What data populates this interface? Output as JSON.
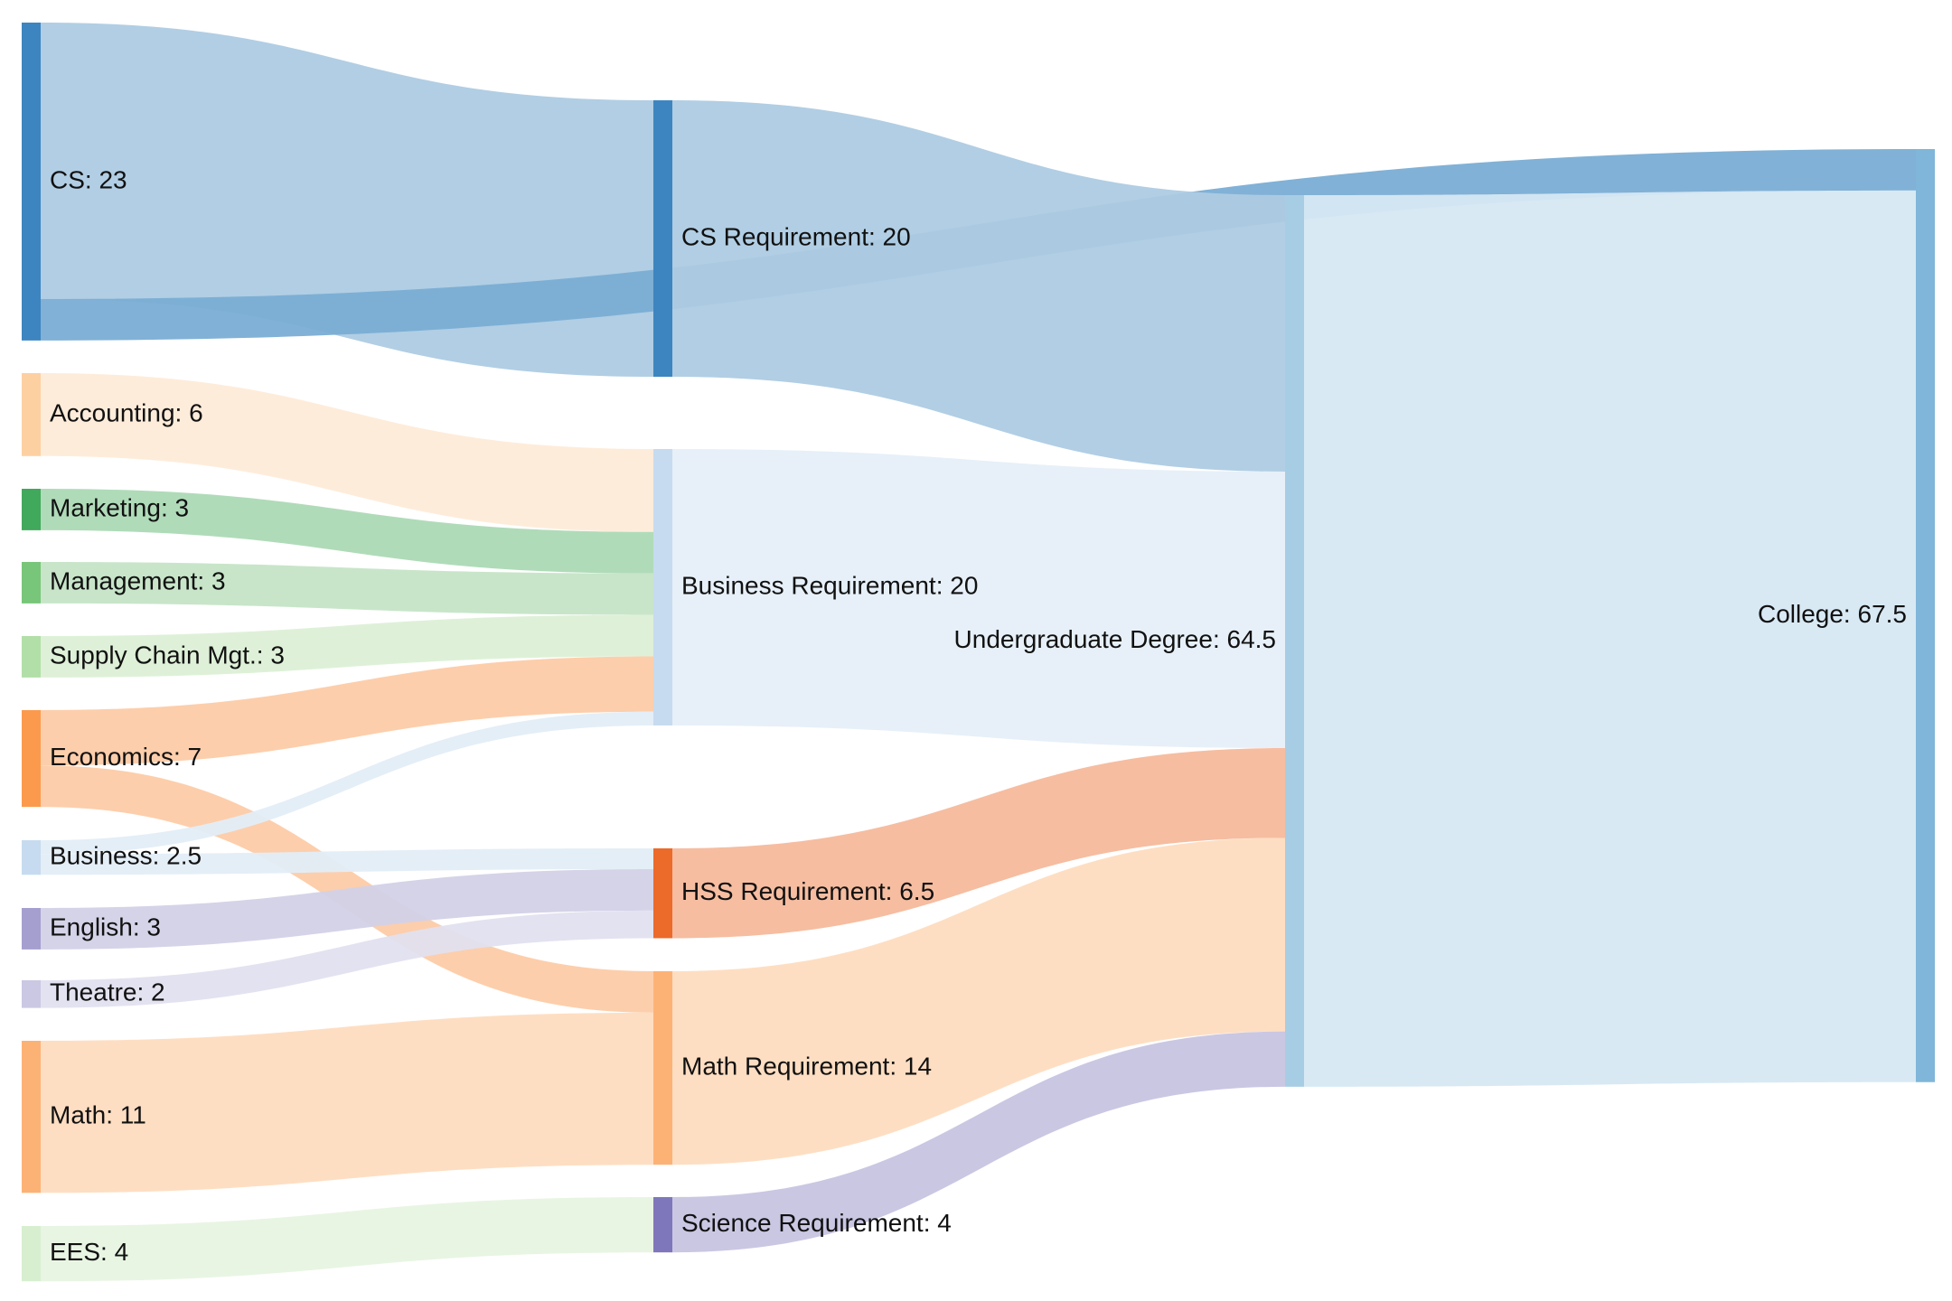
{
  "chart_data": {
    "type": "sankey",
    "title": "",
    "nodes": [
      {
        "id": "cs",
        "name": "CS",
        "label": "CS: 23",
        "value": 23,
        "color": "#3d85c0"
      },
      {
        "id": "accounting",
        "name": "Accounting",
        "label": "Accounting: 6",
        "value": 6,
        "color": "#fdd0a2"
      },
      {
        "id": "marketing",
        "name": "Marketing",
        "label": "Marketing: 3",
        "value": 3,
        "color": "#41a95c"
      },
      {
        "id": "management",
        "name": "Management",
        "label": "Management: 3",
        "value": 3,
        "color": "#78c679"
      },
      {
        "id": "supply_chain",
        "name": "Supply Chain Mgt.",
        "label": "Supply Chain Mgt.: 3",
        "value": 3,
        "color": "#b2dfa8"
      },
      {
        "id": "economics",
        "name": "Economics",
        "label": "Economics: 7",
        "value": 7,
        "color": "#fb9a4d"
      },
      {
        "id": "business",
        "name": "Business",
        "label": "Business: 2.5",
        "value": 2.5,
        "color": "#c6dbef"
      },
      {
        "id": "english",
        "name": "English",
        "label": "English: 3",
        "value": 3,
        "color": "#a59fcf"
      },
      {
        "id": "theatre",
        "name": "Theatre",
        "label": "Theatre: 2",
        "value": 2,
        "color": "#cac8e3"
      },
      {
        "id": "math",
        "name": "Math",
        "label": "Math: 11",
        "value": 11,
        "color": "#fdb275"
      },
      {
        "id": "ees",
        "name": "EES",
        "label": "EES: 4",
        "value": 4,
        "color": "#d7efcf"
      },
      {
        "id": "cs_req",
        "name": "CS Requirement",
        "label": "CS Requirement: 20",
        "value": 20,
        "color": "#3d85c0"
      },
      {
        "id": "business_req",
        "name": "Business Requirement",
        "label": "Business Requirement: 20",
        "value": 20,
        "color": "#c6dbef"
      },
      {
        "id": "hss_req",
        "name": "HSS Requirement",
        "label": "HSS Requirement: 6.5",
        "value": 6.5,
        "color": "#ec6a2a"
      },
      {
        "id": "math_req",
        "name": "Math Requirement",
        "label": "Math Requirement: 14",
        "value": 14,
        "color": "#fdb275"
      },
      {
        "id": "science_req",
        "name": "Science Requirement",
        "label": "Science Requirement: 4",
        "value": 4,
        "color": "#7f77bb"
      },
      {
        "id": "undergrad",
        "name": "Undergraduate Degree",
        "label": "Undergraduate Degree: 64.5",
        "value": 64.5,
        "color": "#a7cde4"
      },
      {
        "id": "college",
        "name": "College",
        "label": "College: 67.5",
        "value": 67.5,
        "color": "#7fb6da"
      }
    ],
    "links": [
      {
        "source": "cs",
        "target": "cs_req",
        "value": 20,
        "color": "#adcbe3"
      },
      {
        "source": "cs",
        "target": "college",
        "value": 3,
        "color": "#7aadd4"
      },
      {
        "source": "accounting",
        "target": "business_req",
        "value": 6,
        "color": "#feebd8"
      },
      {
        "source": "marketing",
        "target": "business_req",
        "value": 3,
        "color": "#acd9b5"
      },
      {
        "source": "management",
        "target": "business_req",
        "value": 3,
        "color": "#c5e4c6"
      },
      {
        "source": "supply_chain",
        "target": "business_req",
        "value": 3,
        "color": "#dcf0d6"
      },
      {
        "source": "economics",
        "target": "business_req",
        "value": 4,
        "color": "#fdcba7"
      },
      {
        "source": "economics",
        "target": "math_req",
        "value": 3,
        "color": "#fdcba7"
      },
      {
        "source": "business",
        "target": "business_req",
        "value": 1,
        "color": "#e3edf7"
      },
      {
        "source": "business",
        "target": "hss_req",
        "value": 1.5,
        "color": "#e3edf7"
      },
      {
        "source": "english",
        "target": "hss_req",
        "value": 3,
        "color": "#d3d1e7"
      },
      {
        "source": "theatre",
        "target": "hss_req",
        "value": 2,
        "color": "#e1e0ef"
      },
      {
        "source": "math",
        "target": "math_req",
        "value": 11,
        "color": "#fedcbf"
      },
      {
        "source": "ees",
        "target": "science_req",
        "value": 4,
        "color": "#e7f4e2"
      },
      {
        "source": "cs_req",
        "target": "undergrad",
        "value": 20,
        "color": "#adcbe3"
      },
      {
        "source": "business_req",
        "target": "undergrad",
        "value": 20,
        "color": "#e6eff8"
      },
      {
        "source": "hss_req",
        "target": "undergrad",
        "value": 6.5,
        "color": "#f5b99c"
      },
      {
        "source": "math_req",
        "target": "undergrad",
        "value": 14,
        "color": "#fedcbf"
      },
      {
        "source": "science_req",
        "target": "undergrad",
        "value": 4,
        "color": "#c7c4e1"
      },
      {
        "source": "undergrad",
        "target": "college",
        "value": 64.5,
        "color": "#d6e8f3"
      }
    ]
  }
}
